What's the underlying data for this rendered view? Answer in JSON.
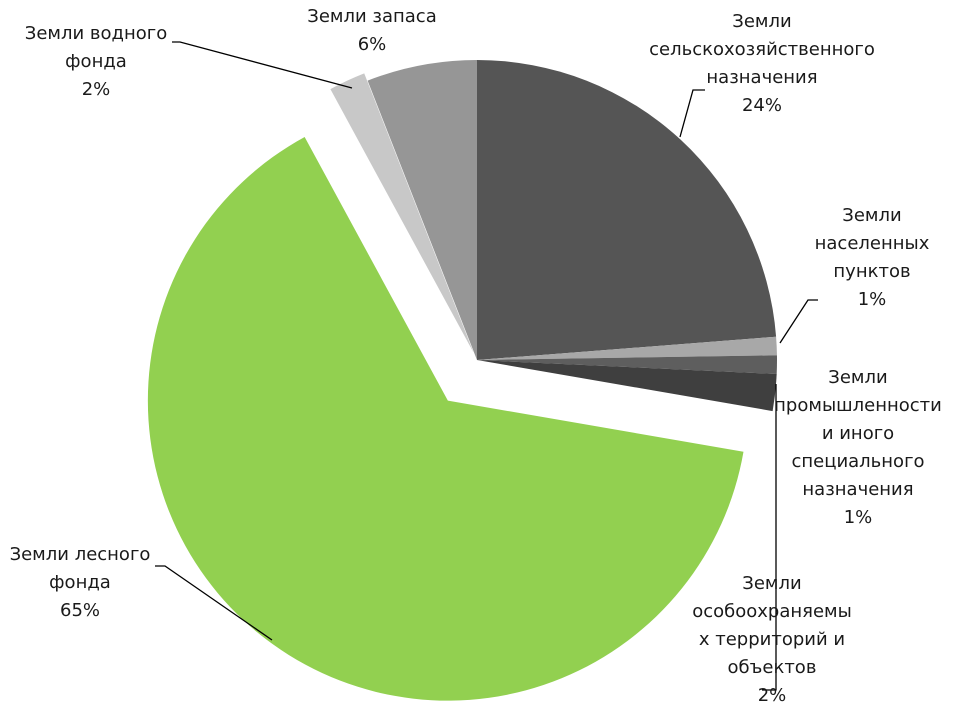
{
  "chart_data": {
    "type": "pie",
    "categories": [
      "Земли\nсельскохозяйственного\nназначения",
      "Земли\nнаселенных\nпунктов",
      "Земли\nпромышленности\nи иного\nспециального\nназначения",
      "Земли\nособоохраняемы\nх территорий и\nобъектов",
      "Земли лесного\nфонда",
      "Земли водного\nфонда",
      "Земли запаса"
    ],
    "values": [
      24,
      1,
      1,
      2,
      65,
      2,
      6
    ],
    "value_labels": [
      "24%",
      "1%",
      "1%",
      "2%",
      "65%",
      "2%",
      "6%"
    ],
    "colors": [
      "#555555",
      "#a8a8a8",
      "#5e5e5e",
      "#3f3f3f",
      "#92d050",
      "#c8c8c8",
      "#969696"
    ]
  }
}
